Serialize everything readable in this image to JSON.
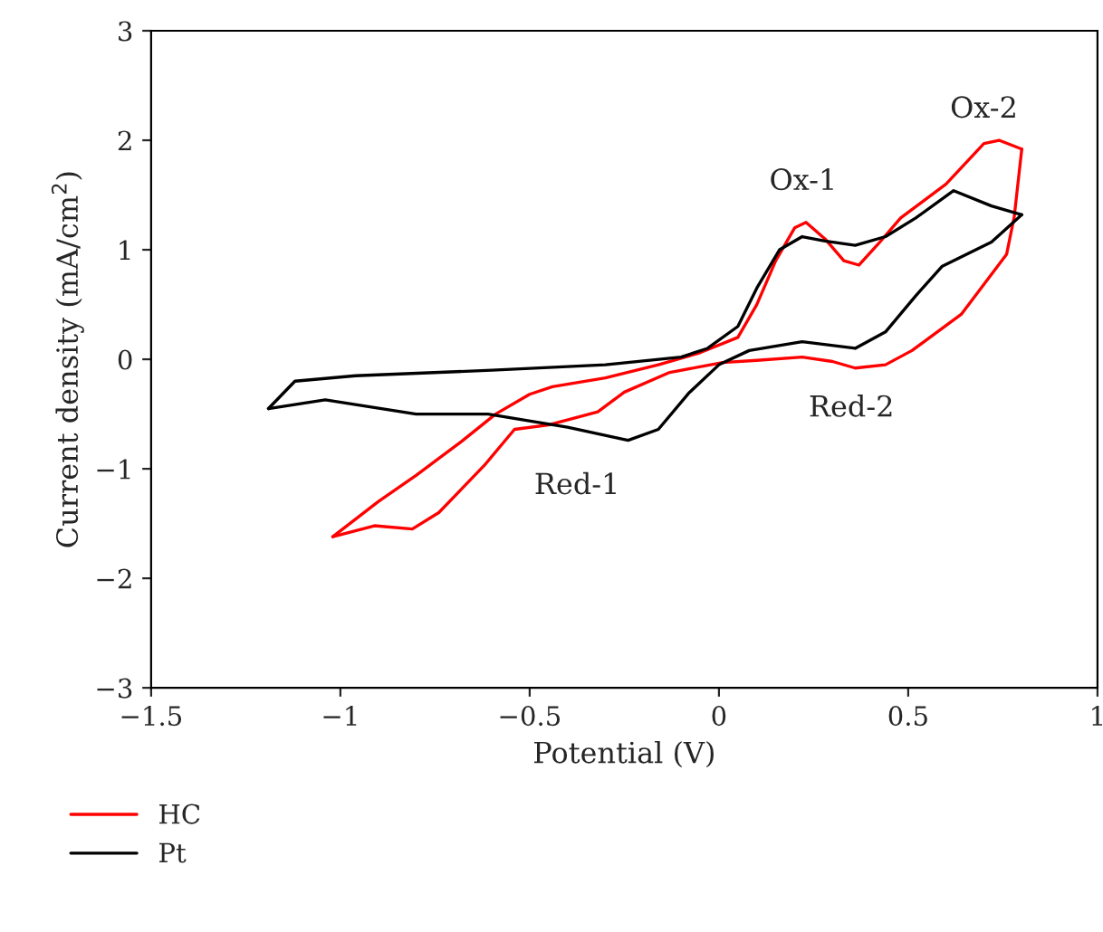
{
  "chart_data": {
    "type": "line",
    "xlabel": "Potential (V)",
    "ylabel": "Current density (mA/cm$^{2}$)",
    "xlim": [
      -1.5,
      1
    ],
    "xticks": [
      {
        "value": -1.5,
        "label": "−1.5"
      },
      {
        "value": -1,
        "label": "−1"
      },
      {
        "value": -0.5,
        "label": "−0.5"
      },
      0,
      0.5,
      1
    ],
    "ylim": [
      -3,
      3
    ],
    "yticks": [
      {
        "value": -3,
        "label": "−3"
      },
      {
        "value": -2,
        "label": "−2"
      },
      {
        "value": -1,
        "label": "−1"
      },
      0,
      1,
      2,
      3
    ],
    "grid": false,
    "legend": "bottom left",
    "marker": "none",
    "line_style": "solid",
    "series": [
      {
        "name": "HC",
        "color": "#ff0000",
        "x": [
          -1.02,
          -0.9,
          -0.8,
          -0.68,
          -0.59,
          -0.5,
          -0.44,
          -0.3,
          -0.16,
          -0.05,
          0.05,
          0.1,
          0.15,
          0.2,
          0.23,
          0.28,
          0.33,
          0.37,
          0.42,
          0.48,
          0.6,
          0.7,
          0.74,
          0.8
        ],
        "values": [
          -1.62,
          -1.3,
          -1.06,
          -0.75,
          -0.5,
          -0.32,
          -0.25,
          -0.17,
          -0.05,
          0.06,
          0.2,
          0.5,
          0.9,
          1.2,
          1.25,
          1.1,
          0.9,
          0.86,
          1.05,
          1.29,
          1.6,
          1.97,
          2.0,
          1.92
        ]
      },
      {
        "color": "#ff0000",
        "x": [
          0.8,
          0.78,
          0.76,
          0.64,
          0.51,
          0.44,
          0.36,
          0.3,
          0.22,
          0.1,
          0.01,
          -0.13,
          -0.25,
          -0.32,
          -0.45,
          -0.54,
          -0.62,
          -0.74,
          -0.81,
          -0.91,
          -1.02
        ],
        "values": [
          1.92,
          1.3,
          0.96,
          0.41,
          0.08,
          -0.05,
          -0.08,
          -0.02,
          0.02,
          -0.01,
          -0.03,
          -0.12,
          -0.3,
          -0.48,
          -0.6,
          -0.64,
          -0.97,
          -1.4,
          -1.55,
          -1.52,
          -1.62
        ]
      },
      {
        "name": "Pt",
        "color": "#000000",
        "x": [
          -1.19,
          -1.12,
          -0.96,
          -0.6,
          -0.3,
          -0.1,
          -0.03,
          0.05,
          0.1,
          0.16,
          0.22,
          0.28,
          0.36,
          0.44,
          0.52,
          0.62,
          0.72,
          0.8
        ],
        "values": [
          -0.45,
          -0.2,
          -0.15,
          -0.1,
          -0.05,
          0.02,
          0.1,
          0.3,
          0.65,
          1.0,
          1.12,
          1.08,
          1.04,
          1.12,
          1.29,
          1.54,
          1.4,
          1.32
        ]
      },
      {
        "color": "#000000",
        "x": [
          0.8,
          0.72,
          0.59,
          0.52,
          0.44,
          0.36,
          0.22,
          0.08,
          0,
          -0.08,
          -0.16,
          -0.24,
          -0.4,
          -0.61,
          -0.8,
          -1.04,
          -1.19
        ],
        "values": [
          1.32,
          1.07,
          0.85,
          0.58,
          0.25,
          0.1,
          0.16,
          0.08,
          -0.05,
          -0.31,
          -0.64,
          -0.74,
          -0.62,
          -0.5,
          -0.5,
          -0.37,
          -0.45
        ]
      }
    ],
    "annotations": [
      "Ox-1",
      "Ox-2",
      "Red-2",
      "Red-1"
    ]
  }
}
